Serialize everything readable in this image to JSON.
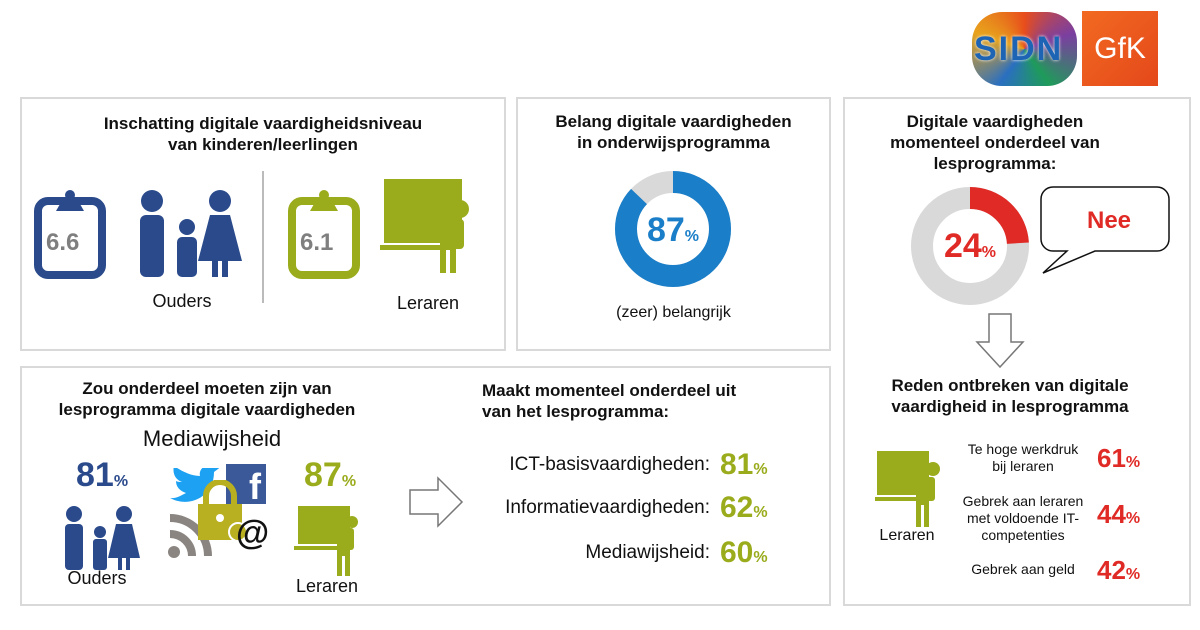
{
  "logos": {
    "sidn": "SIDN",
    "gfk": "GfK"
  },
  "colors": {
    "navy": "#2a4a8c",
    "olive": "#9aab1c",
    "blue": "#1a7ec8",
    "red": "#e02a26",
    "gray": "#d9d9d9"
  },
  "box1": {
    "title_line1": "Inschatting digitale vaardigheidsniveau",
    "title_line2": "van kinderen/leerlingen",
    "ouders_score": "6.6",
    "ouders_label": "Ouders",
    "leraren_score": "6.1",
    "leraren_label": "Leraren"
  },
  "box2": {
    "title_line1": "Belang digitale vaardigheden",
    "title_line2": "in onderwijsprogramma",
    "value": "87",
    "pct": "%",
    "percent": 87,
    "caption": "(zeer) belangrijk"
  },
  "box3": {
    "title_line1": "Digitale vaardigheden",
    "title_line2": "momenteel onderdeel van",
    "title_line3": "lesprogramma:",
    "value": "24",
    "pct": "%",
    "percent": 24,
    "bubble": "Nee",
    "reasons_title_line1": "Reden ontbreken van digitale",
    "reasons_title_line2": "vaardigheid in lesprogramma",
    "leraren_label": "Leraren",
    "reasons": [
      {
        "line1": "Te hoge werkdruk",
        "line2": "bij leraren",
        "line3": "",
        "value": "61",
        "pct": "%"
      },
      {
        "line1": "Gebrek aan leraren",
        "line2": "met voldoende IT-",
        "line3": "competenties",
        "value": "44",
        "pct": "%"
      },
      {
        "line1": "Gebrek aan geld",
        "line2": "",
        "line3": "",
        "value": "42",
        "pct": "%"
      }
    ]
  },
  "box4": {
    "title_line1": "Zou onderdeel moeten zijn van",
    "title_line2": "lesprogramma digitale vaardigheden",
    "subtitle": "Mediawijsheid",
    "ouders_value": "81",
    "ouders_label": "Ouders",
    "leraren_value": "87",
    "leraren_label": "Leraren",
    "pct": "%",
    "at": "@",
    "fb": "f",
    "right_title_line1": "Maakt momenteel onderdeel uit",
    "right_title_line2": "van het lesprogramma:",
    "items": [
      {
        "label": "ICT-basisvaardigheden:",
        "value": "81",
        "pct": "%"
      },
      {
        "label": "Informatievaardigheden:",
        "value": "62",
        "pct": "%"
      },
      {
        "label": "Mediawijsheid:",
        "value": "60",
        "pct": "%"
      }
    ]
  }
}
